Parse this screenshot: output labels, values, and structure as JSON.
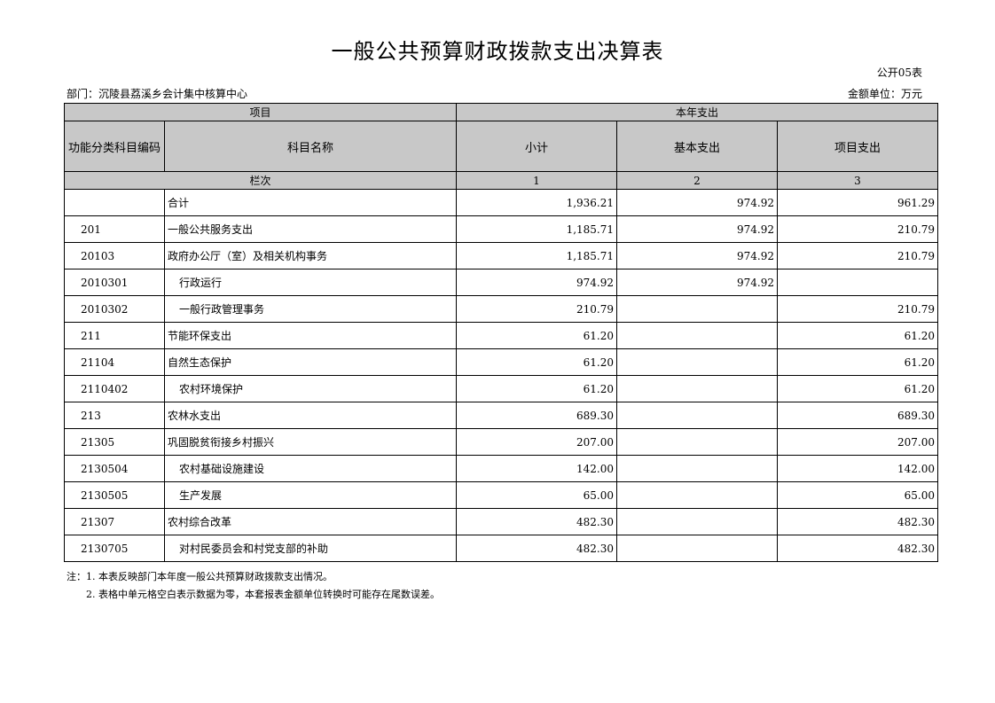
{
  "title": "一般公共预算财政拨款支出决算表",
  "form_code": "公开05表",
  "department": "部门：沉陵县荔溪乡会计集中核算中心",
  "unit": "金额单位：万元",
  "header": {
    "item": "项目",
    "current_year": "本年支出",
    "code": "功能分类科目编码",
    "name": "科目名称",
    "subtotal": "小计",
    "basic": "基本支出",
    "project": "项目支出",
    "column_no": "栏次",
    "col1": "1",
    "col2": "2",
    "col3": "3"
  },
  "rows": [
    {
      "code": "",
      "name": "合计",
      "subtotal": "1,936.21",
      "basic": "974.92",
      "project": "961.29",
      "indent": false
    },
    {
      "code": "201",
      "name": "一般公共服务支出",
      "subtotal": "1,185.71",
      "basic": "974.92",
      "project": "210.79",
      "indent": false
    },
    {
      "code": "20103",
      "name": "政府办公厅（室）及相关机构事务",
      "subtotal": "1,185.71",
      "basic": "974.92",
      "project": "210.79",
      "indent": false
    },
    {
      "code": "2010301",
      "name": "行政运行",
      "subtotal": "974.92",
      "basic": "974.92",
      "project": "",
      "indent": true
    },
    {
      "code": "2010302",
      "name": "一般行政管理事务",
      "subtotal": "210.79",
      "basic": "",
      "project": "210.79",
      "indent": true
    },
    {
      "code": "211",
      "name": "节能环保支出",
      "subtotal": "61.20",
      "basic": "",
      "project": "61.20",
      "indent": false
    },
    {
      "code": "21104",
      "name": "自然生态保护",
      "subtotal": "61.20",
      "basic": "",
      "project": "61.20",
      "indent": false
    },
    {
      "code": "2110402",
      "name": "农村环境保护",
      "subtotal": "61.20",
      "basic": "",
      "project": "61.20",
      "indent": true
    },
    {
      "code": "213",
      "name": "农林水支出",
      "subtotal": "689.30",
      "basic": "",
      "project": "689.30",
      "indent": false
    },
    {
      "code": "21305",
      "name": "巩固脱贫衔接乡村振兴",
      "subtotal": "207.00",
      "basic": "",
      "project": "207.00",
      "indent": false
    },
    {
      "code": "2130504",
      "name": "农村基础设施建设",
      "subtotal": "142.00",
      "basic": "",
      "project": "142.00",
      "indent": true
    },
    {
      "code": "2130505",
      "name": "生产发展",
      "subtotal": "65.00",
      "basic": "",
      "project": "65.00",
      "indent": true
    },
    {
      "code": "21307",
      "name": "农村综合改革",
      "subtotal": "482.30",
      "basic": "",
      "project": "482.30",
      "indent": false
    },
    {
      "code": "2130705",
      "name": "对村民委员会和村党支部的补助",
      "subtotal": "482.30",
      "basic": "",
      "project": "482.30",
      "indent": true
    }
  ],
  "notes": [
    "注：1. 本表反映部门本年度一般公共预算财政拨款支出情况。",
    "2. 表格中单元格空白表示数据为零，本套报表金额单位转换时可能存在尾数误差。"
  ]
}
